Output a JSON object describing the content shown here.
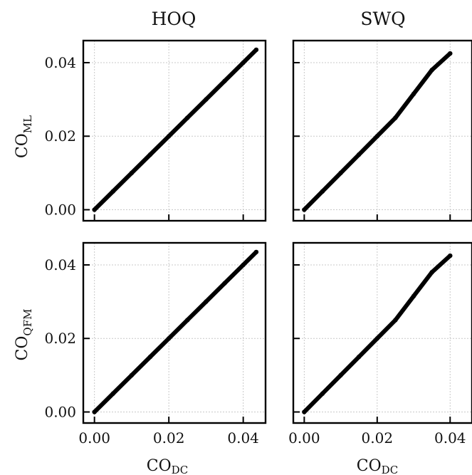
{
  "figure": {
    "column_titles": [
      "HOQ",
      "SWQ"
    ],
    "row_ylabels": [
      {
        "main": "CO",
        "sub": "ML"
      },
      {
        "main": "CO",
        "sub": "QFM"
      }
    ],
    "xlabel": {
      "main": "CO",
      "sub": "DC"
    }
  },
  "chart_data": [
    {
      "type": "scatter",
      "panel": "HOQ / CO_ML",
      "xlabel": "",
      "ylabel": "CO_ML",
      "title": "HOQ",
      "xlim": [
        -0.003,
        0.046
      ],
      "ylim": [
        -0.003,
        0.046
      ],
      "xticks": [
        0.0,
        0.02,
        0.04
      ],
      "yticks": [
        0.0,
        0.02,
        0.04
      ],
      "xtick_labels": [],
      "ytick_labels": [
        "0.00",
        "0.02",
        "0.04"
      ],
      "grid": true,
      "series": [
        {
          "x": [
            0.0,
            0.005,
            0.01,
            0.015,
            0.02,
            0.025,
            0.03,
            0.035,
            0.04,
            0.0435
          ],
          "y": [
            0.0,
            0.005,
            0.01,
            0.015,
            0.02,
            0.025,
            0.03,
            0.035,
            0.04,
            0.0435
          ]
        }
      ],
      "color": "#000000"
    },
    {
      "type": "scatter",
      "panel": "SWQ / CO_ML",
      "xlabel": "",
      "ylabel": "",
      "title": "SWQ",
      "xlim": [
        -0.003,
        0.046
      ],
      "ylim": [
        -0.003,
        0.046
      ],
      "xticks": [
        0.0,
        0.02,
        0.04
      ],
      "yticks": [
        0.0,
        0.02,
        0.04
      ],
      "xtick_labels": [],
      "ytick_labels": [],
      "grid": true,
      "series": [
        {
          "x": [
            0.0,
            0.005,
            0.01,
            0.015,
            0.02,
            0.025,
            0.03,
            0.035,
            0.04
          ],
          "y": [
            0.0,
            0.005,
            0.01,
            0.015,
            0.02,
            0.025,
            0.0315,
            0.038,
            0.0425
          ]
        }
      ],
      "color": "#000000"
    },
    {
      "type": "scatter",
      "panel": "HOQ / CO_QFM",
      "xlabel": "CO_DC",
      "ylabel": "CO_QFM",
      "title": "",
      "xlim": [
        -0.003,
        0.046
      ],
      "ylim": [
        -0.003,
        0.046
      ],
      "xticks": [
        0.0,
        0.02,
        0.04
      ],
      "yticks": [
        0.0,
        0.02,
        0.04
      ],
      "xtick_labels": [
        "0.00",
        "0.02",
        "0.04"
      ],
      "ytick_labels": [
        "0.00",
        "0.02",
        "0.04"
      ],
      "grid": true,
      "series": [
        {
          "x": [
            0.0,
            0.005,
            0.01,
            0.015,
            0.02,
            0.025,
            0.03,
            0.035,
            0.04,
            0.0435
          ],
          "y": [
            0.0,
            0.005,
            0.01,
            0.015,
            0.02,
            0.025,
            0.03,
            0.035,
            0.04,
            0.0435
          ]
        }
      ],
      "color": "#000000"
    },
    {
      "type": "scatter",
      "panel": "SWQ / CO_QFM",
      "xlabel": "CO_DC",
      "ylabel": "",
      "title": "",
      "xlim": [
        -0.003,
        0.046
      ],
      "ylim": [
        -0.003,
        0.046
      ],
      "xticks": [
        0.0,
        0.02,
        0.04
      ],
      "yticks": [
        0.0,
        0.02,
        0.04
      ],
      "xtick_labels": [
        "0.00",
        "0.02",
        "0.04"
      ],
      "ytick_labels": [],
      "grid": true,
      "series": [
        {
          "x": [
            0.0,
            0.005,
            0.01,
            0.015,
            0.02,
            0.025,
            0.03,
            0.035,
            0.04
          ],
          "y": [
            0.0,
            0.005,
            0.01,
            0.015,
            0.02,
            0.025,
            0.0315,
            0.038,
            0.0425
          ]
        }
      ],
      "color": "#000000"
    }
  ]
}
